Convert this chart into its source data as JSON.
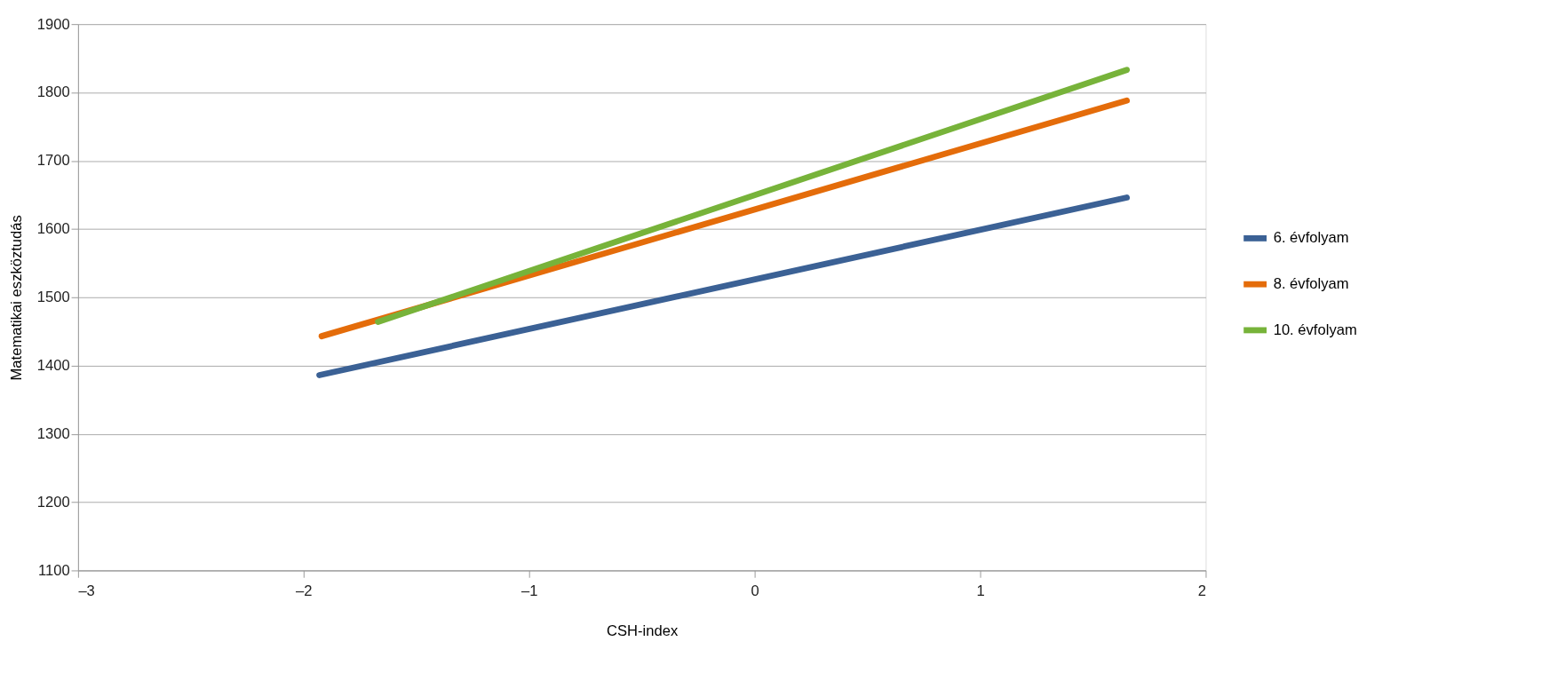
{
  "chart_data": {
    "type": "line",
    "xlabel": "CSH-index",
    "ylabel": "Matematikai eszköztudás",
    "series": [
      {
        "name": "6. évfolyam",
        "color": "#3b6195",
        "x": [
          -1.93,
          1.65
        ],
        "values": [
          1386,
          1646
        ]
      },
      {
        "name": "8. évfolyam",
        "color": "#e46c0a",
        "x": [
          -1.92,
          1.65
        ],
        "values": [
          1443,
          1788
        ]
      },
      {
        "name": "10. évfolyam",
        "color": "#77b33a",
        "x": [
          -1.67,
          1.65
        ],
        "values": [
          1464,
          1833
        ]
      }
    ],
    "xlim": [
      -3,
      2
    ],
    "xticks": [
      {
        "value": -3,
        "label": "–3"
      },
      {
        "value": -2,
        "label": "–2"
      },
      {
        "value": -1,
        "label": "–1"
      },
      0,
      1,
      2
    ],
    "ylim": [
      1100,
      1900
    ],
    "yticks": [
      1100,
      1200,
      1300,
      1400,
      1500,
      1600,
      1700,
      1800,
      1900
    ],
    "grid": "y",
    "legend": "right",
    "marker": "none",
    "line_style": "solid"
  }
}
